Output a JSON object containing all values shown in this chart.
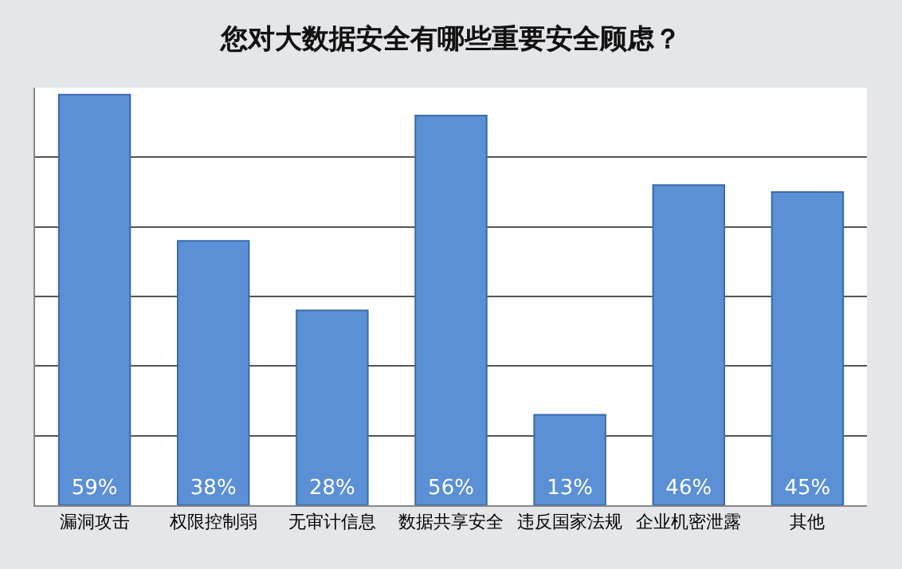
{
  "chart_data": {
    "type": "bar",
    "title": "您对大数据安全有哪些重要安全顾虑？",
    "categories": [
      "漏洞攻击",
      "权限控制弱",
      "无审计信息",
      "数据共享安全",
      "违反国家法规",
      "企业机密泄露",
      "其他"
    ],
    "values": [
      59,
      38,
      28,
      56,
      13,
      46,
      45
    ],
    "value_labels": [
      "59%",
      "38%",
      "28%",
      "56%",
      "13%",
      "46%",
      "45%"
    ],
    "color": "#5b8fd6",
    "ylim": [
      0,
      60
    ],
    "yticks": [
      {
        "value": 0,
        "label": null
      },
      {
        "value": 10,
        "label": null
      },
      {
        "value": 20,
        "label": null
      },
      {
        "value": 30,
        "label": null
      },
      {
        "value": 40,
        "label": null
      },
      {
        "value": 50,
        "label": null
      },
      {
        "value": 60,
        "label": null
      }
    ],
    "tick_labels": "x",
    "grid": "y"
  }
}
